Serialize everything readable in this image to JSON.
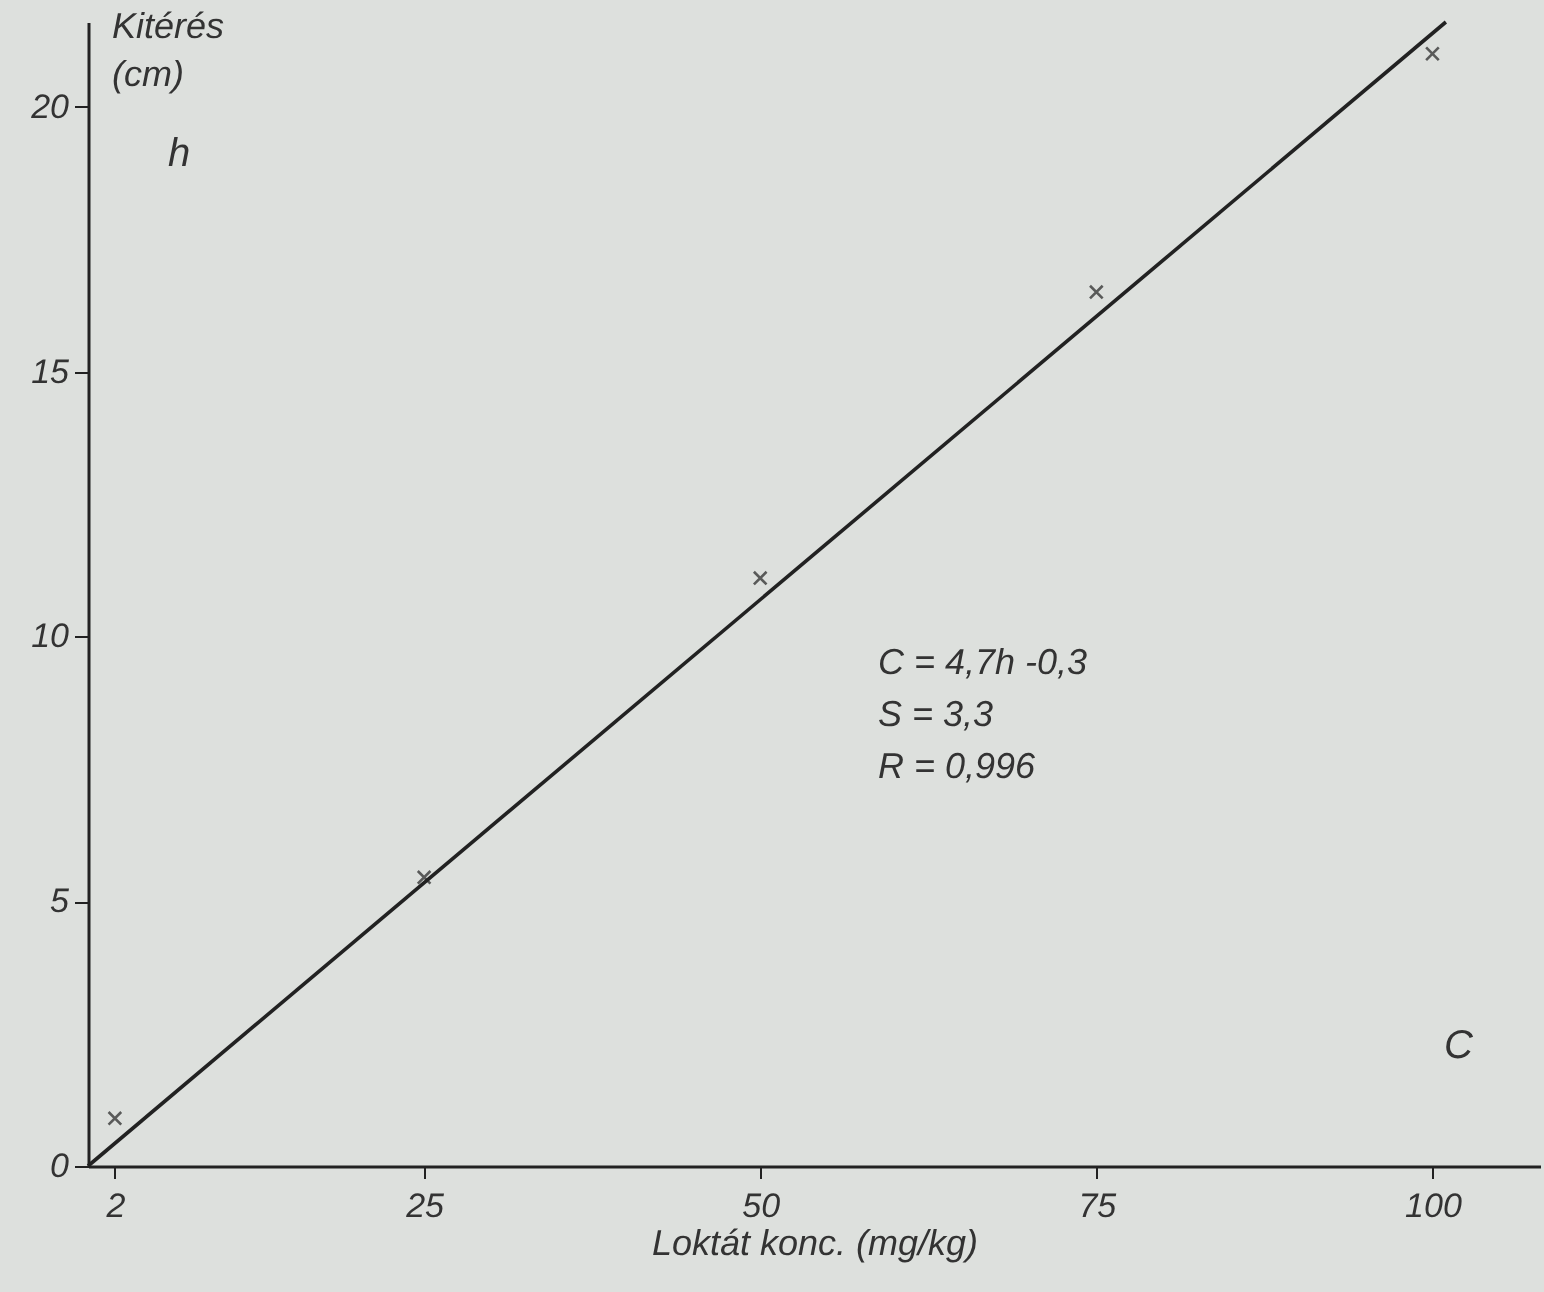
{
  "chart_data": {
    "type": "scatter",
    "xlabel": "Loktát konc. (mg/kg)",
    "ylabel": "Kitérés\n(cm)",
    "xlim": [
      0,
      108
    ],
    "ylim": [
      0,
      21.6
    ],
    "xticks": [
      2,
      25,
      50,
      75,
      100
    ],
    "yticks": [
      0,
      5,
      10,
      15,
      20
    ],
    "series": [
      {
        "color": "#222222",
        "marker": "cross",
        "x": [
          2,
          25,
          50,
          75,
          100
        ],
        "values": [
          0.9,
          5.45,
          11.1,
          16.5,
          21.0
        ]
      },
      {
        "type": "line",
        "color": "#222222",
        "line_style": "solid",
        "x": [
          0,
          101
        ],
        "values": [
          0,
          21.6
        ]
      }
    ],
    "annotations": [
      "h",
      "C",
      "C = 4,7h -0,3",
      "S = 3,3",
      "R = 0,996"
    ]
  }
}
